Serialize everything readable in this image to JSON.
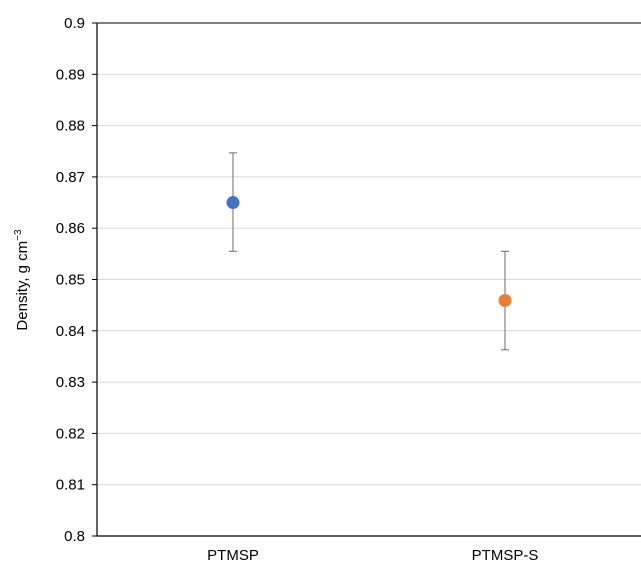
{
  "chart_data": {
    "type": "scatter",
    "categories": [
      "PTMSP",
      "PTMSP-S"
    ],
    "points": [
      {
        "category": "PTMSP",
        "y": 0.865,
        "error_low": 0.8555,
        "error_high": 0.8747,
        "color": "#4472C4"
      },
      {
        "category": "PTMSP-S",
        "y": 0.8459,
        "error_low": 0.8363,
        "error_high": 0.8555,
        "color": "#ED7D31"
      }
    ],
    "ylabel": {
      "text": "Density, g cm",
      "superscript": "−3"
    },
    "ylim": [
      0.8,
      0.9
    ],
    "ytick_labels": [
      "0.8",
      "0.81",
      "0.82",
      "0.83",
      "0.84",
      "0.85",
      "0.86",
      "0.87",
      "0.88",
      "0.89",
      "0.9"
    ],
    "grid": true,
    "legend": "none"
  }
}
